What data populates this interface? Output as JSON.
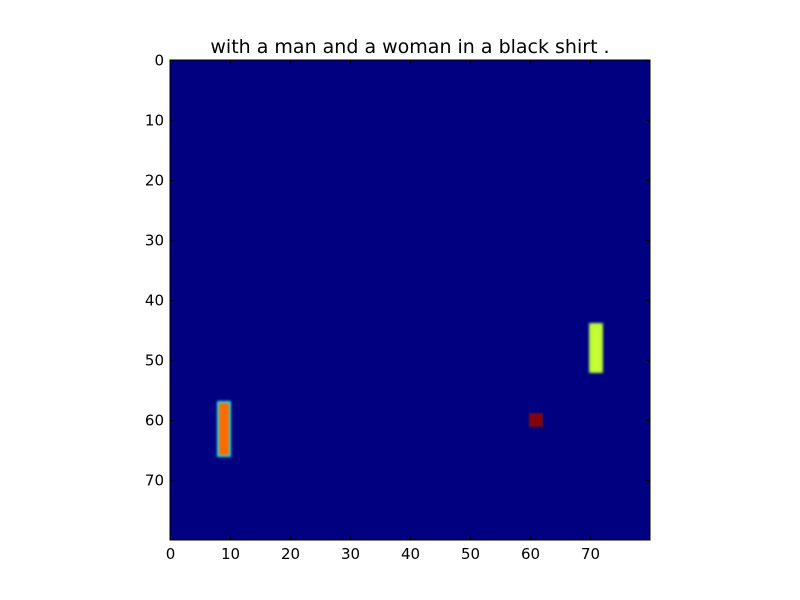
{
  "chart_data": {
    "type": "heatmap",
    "title": "with a man and a woman in a black shirt .",
    "xlabel": "",
    "ylabel": "",
    "grid_size": [
      80,
      80
    ],
    "xlim": [
      0,
      80
    ],
    "ylim": [
      80,
      0
    ],
    "x_ticks": [
      0,
      10,
      20,
      30,
      40,
      50,
      60,
      70
    ],
    "y_ticks": [
      0,
      10,
      20,
      30,
      40,
      50,
      60,
      70
    ],
    "colormap": "jet",
    "background_value": 0.0,
    "background_color": "#000080",
    "grid": false,
    "blobs": [
      {
        "name": "left-bar",
        "x_range": [
          8,
          10
        ],
        "y_range": [
          57,
          66
        ],
        "value": 0.8,
        "color": "#ff6a00",
        "edge_color": "#22e0e6"
      },
      {
        "name": "right-bar",
        "x_range": [
          70,
          72
        ],
        "y_range": [
          44,
          52
        ],
        "value": 0.65,
        "color": "#c4ff33",
        "edge_color": "#a8e84a"
      },
      {
        "name": "small-dot",
        "x_range": [
          60,
          62
        ],
        "y_range": [
          59,
          61
        ],
        "value": 1.0,
        "color": "#8b0000",
        "edge_color": "#6a0a20"
      }
    ]
  }
}
